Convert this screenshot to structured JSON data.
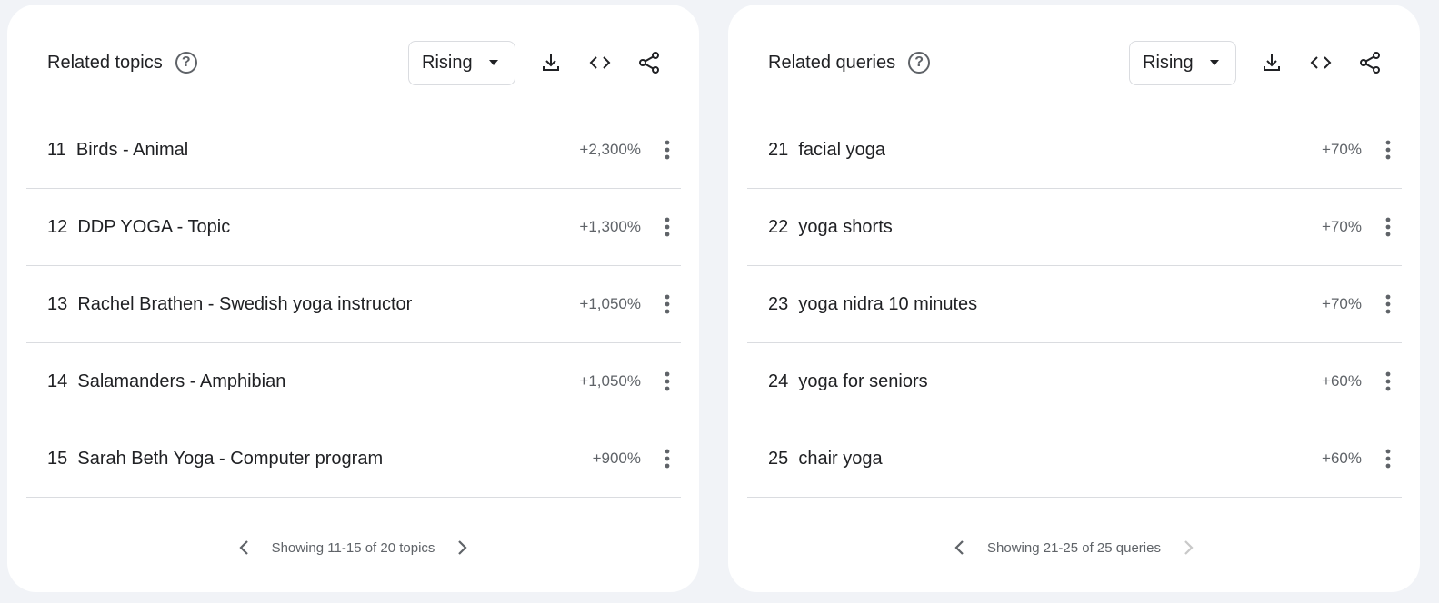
{
  "topics": {
    "title": "Related topics",
    "filter": "Rising",
    "items": [
      {
        "label": "11  Birds - Animal",
        "value": "+2,300%"
      },
      {
        "label": "12  DDP YOGA - Topic",
        "value": "+1,300%"
      },
      {
        "label": "13  Rachel Brathen - Swedish yoga instructor",
        "value": "+1,050%"
      },
      {
        "label": "14  Salamanders - Amphibian",
        "value": "+1,050%"
      },
      {
        "label": "15  Sarah Beth Yoga - Computer program",
        "value": "+900%"
      }
    ],
    "pagination": "Showing 11-15 of 20 topics"
  },
  "queries": {
    "title": "Related queries",
    "filter": "Rising",
    "items": [
      {
        "label": "21  facial yoga",
        "value": "+70%"
      },
      {
        "label": "22  yoga shorts",
        "value": "+70%"
      },
      {
        "label": "23  yoga nidra 10 minutes",
        "value": "+70%"
      },
      {
        "label": "24  yoga for seniors",
        "value": "+60%"
      },
      {
        "label": "25  chair yoga",
        "value": "+60%"
      }
    ],
    "pagination": "Showing 21-25 of 25 queries"
  },
  "icons": {
    "help": "?",
    "colors": {
      "text": "#202124",
      "muted": "#5f6368",
      "divider": "#dadce0",
      "disabled": "#c8c8c8"
    }
  }
}
